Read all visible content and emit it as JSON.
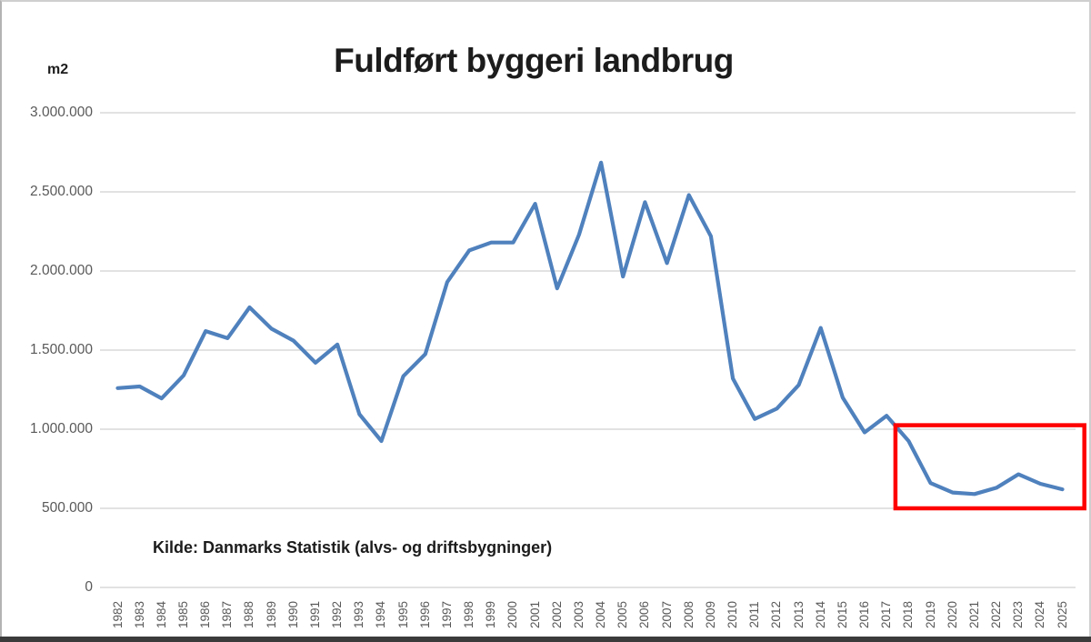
{
  "page": {
    "background": "#ffffff",
    "frame_color": "#b3b3b3",
    "bottom_bar_color": "#3b3b3b"
  },
  "chart_data": {
    "type": "line",
    "title": "Fuldført byggeri landbrug",
    "unit_label": "m2",
    "source_note": "Kilde: Danmarks Statistik (alvs- og driftsbygninger)",
    "xlabel": "",
    "ylabel": "m2",
    "ylim": [
      0,
      3000000
    ],
    "grid": true,
    "legend": "none",
    "x_tick_rotation": -90,
    "grid_color": "#d9d9d9",
    "axis_text_color": "#595959",
    "y_ticks": [
      {
        "value": 3000000,
        "label": "3.000.000"
      },
      {
        "value": 2500000,
        "label": "2.500.000"
      },
      {
        "value": 2000000,
        "label": "2.000.000"
      },
      {
        "value": 1500000,
        "label": "1.500.000"
      },
      {
        "value": 1000000,
        "label": "1.000.000"
      },
      {
        "value": 500000,
        "label": "500.000"
      },
      {
        "value": 0,
        "label": "0"
      }
    ],
    "categories": [
      1982,
      1983,
      1984,
      1985,
      1986,
      1987,
      1988,
      1989,
      1990,
      1991,
      1992,
      1993,
      1994,
      1995,
      1996,
      1997,
      1998,
      1999,
      2000,
      2001,
      2002,
      2003,
      2004,
      2005,
      2006,
      2007,
      2008,
      2009,
      2010,
      2011,
      2012,
      2013,
      2014,
      2015,
      2016,
      2017,
      2018,
      2019,
      2020,
      2021,
      2022,
      2023,
      2024,
      2025
    ],
    "series": [
      {
        "name": "Fuldført byggeri landbrug",
        "color": "#4f81bd",
        "values": [
          1260000,
          1270000,
          1195000,
          1340000,
          1620000,
          1575000,
          1770000,
          1635000,
          1560000,
          1420000,
          1535000,
          1095000,
          925000,
          1335000,
          1475000,
          1930000,
          2130000,
          2180000,
          2180000,
          2425000,
          1890000,
          2230000,
          2685000,
          1965000,
          2435000,
          2050000,
          2480000,
          2220000,
          1320000,
          1065000,
          1130000,
          1280000,
          1640000,
          1200000,
          980000,
          1085000,
          925000,
          660000,
          600000,
          590000,
          630000,
          715000,
          655000,
          620000
        ]
      }
    ],
    "highlight_box": {
      "color": "#fe0000",
      "year_start": 2017.4,
      "year_end": 2026.0,
      "value_top": 1025000,
      "value_bottom": 500000
    }
  }
}
